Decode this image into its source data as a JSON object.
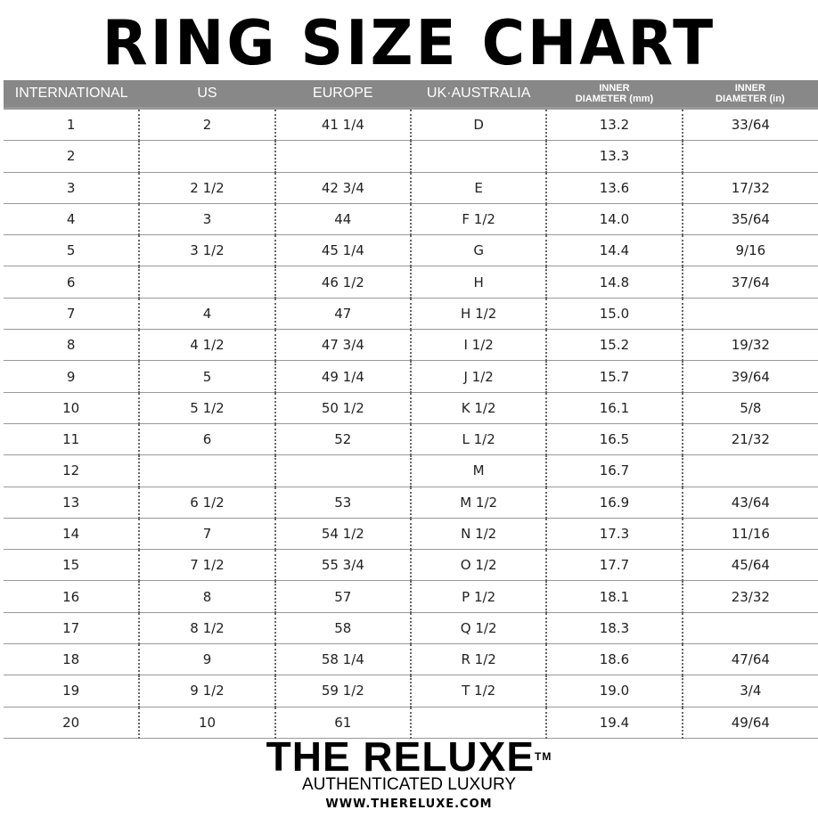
{
  "title": "RING SIZE CHART",
  "table": {
    "headers": [
      {
        "line1": "INTERNATIONAL",
        "line2": ""
      },
      {
        "line1": "US",
        "line2": ""
      },
      {
        "line1": "EUROPE",
        "line2": ""
      },
      {
        "line1": "UK·AUSTRALIA",
        "line2": ""
      },
      {
        "line1": "INNER",
        "line2": "DIAMETER (mm)"
      },
      {
        "line1": "INNER",
        "line2": "DIAMETER (in)"
      }
    ],
    "rows": [
      [
        "1",
        "2",
        "41 1/4",
        "D",
        "13.2",
        "33/64"
      ],
      [
        "2",
        "",
        "",
        "",
        "13.3",
        ""
      ],
      [
        "3",
        "2 1/2",
        "42 3/4",
        "E",
        "13.6",
        "17/32"
      ],
      [
        "4",
        "3",
        "44",
        "F 1/2",
        "14.0",
        "35/64"
      ],
      [
        "5",
        "3 1/2",
        "45 1/4",
        "G",
        "14.4",
        "9/16"
      ],
      [
        "6",
        "",
        "46 1/2",
        "H",
        "14.8",
        "37/64"
      ],
      [
        "7",
        "4",
        "47",
        "H 1/2",
        "15.0",
        ""
      ],
      [
        "8",
        "4 1/2",
        "47 3/4",
        "I 1/2",
        "15.2",
        "19/32"
      ],
      [
        "9",
        "5",
        "49 1/4",
        "J 1/2",
        "15.7",
        "39/64"
      ],
      [
        "10",
        "5 1/2",
        "50 1/2",
        "K 1/2",
        "16.1",
        "5/8"
      ],
      [
        "11",
        "6",
        "52",
        "L 1/2",
        "16.5",
        "21/32"
      ],
      [
        "12",
        "",
        "",
        "M",
        "16.7",
        ""
      ],
      [
        "13",
        "6 1/2",
        "53",
        "M 1/2",
        "16.9",
        "43/64"
      ],
      [
        "14",
        "7",
        "54 1/2",
        "N 1/2",
        "17.3",
        "11/16"
      ],
      [
        "15",
        "7 1/2",
        "55 3/4",
        "O 1/2",
        "17.7",
        "45/64"
      ],
      [
        "16",
        "8",
        "57",
        "P 1/2",
        "18.1",
        "23/32"
      ],
      [
        "17",
        "8 1/2",
        "58",
        "Q 1/2",
        "18.3",
        ""
      ],
      [
        "18",
        "9",
        "58 1/4",
        "R 1/2",
        "18.6",
        "47/64"
      ],
      [
        "19",
        "9 1/2",
        "59 1/2",
        "T 1/2",
        "19.0",
        "3/4"
      ],
      [
        "20",
        "10",
        "61",
        "",
        "19.4",
        "49/64"
      ]
    ]
  },
  "brand": {
    "name": "THE RELUXE",
    "trademark": "TM",
    "tagline": "AUTHENTICATED LUXURY",
    "url": "WWW.THERELUXE.COM"
  },
  "colors": {
    "header_bg": "#888888",
    "header_text": "#ffffff"
  }
}
